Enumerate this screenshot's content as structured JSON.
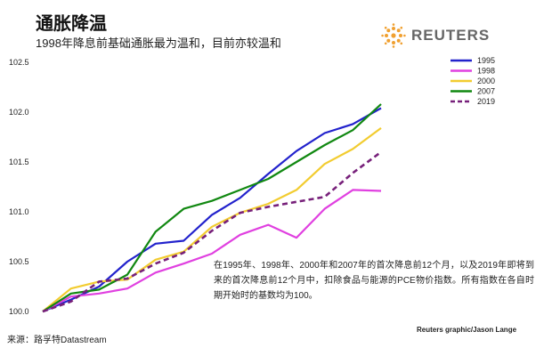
{
  "header": {
    "title": "通胀降温",
    "subtitle": "1998年降息前基础通胀最为温和，目前亦较温和"
  },
  "logo": {
    "text": "REUTERS"
  },
  "source": "来源：路孚特Datastream",
  "credit": "Reuters graphic/Jason Lange",
  "note": "在1995年、1998年、2000年和2007年的首次降息前12个月，以及2019年即将到来的首次降息前12个月中，扣除食品与能源的PCE物价指数。所有指数在各自时期开始时的基数均为100。",
  "chart_data": {
    "type": "line",
    "x": [
      0,
      1,
      2,
      3,
      4,
      5,
      6,
      7,
      8,
      9,
      10,
      11,
      12
    ],
    "ylim": [
      100.0,
      102.5
    ],
    "yticks": [
      "100.0",
      "100.5",
      "101.0",
      "101.5",
      "102.0",
      "102.5"
    ],
    "legend_position": "top-right",
    "series": [
      {
        "name": "1995",
        "color": "#2222cc",
        "style": "solid",
        "values": [
          100.0,
          100.12,
          100.25,
          100.5,
          100.68,
          100.71,
          100.97,
          101.14,
          101.38,
          101.61,
          101.79,
          101.88,
          102.04
        ]
      },
      {
        "name": "1998",
        "color": "#e040e0",
        "style": "solid",
        "values": [
          100.0,
          100.15,
          100.18,
          100.23,
          100.39,
          100.48,
          100.58,
          100.77,
          100.87,
          100.74,
          101.03,
          101.22,
          101.21
        ]
      },
      {
        "name": "2000",
        "color": "#f2cc30",
        "style": "solid",
        "values": [
          100.0,
          100.23,
          100.3,
          100.32,
          100.52,
          100.6,
          100.85,
          100.99,
          101.08,
          101.22,
          101.48,
          101.63,
          101.84
        ]
      },
      {
        "name": "2007",
        "color": "#118811",
        "style": "solid",
        "values": [
          100.0,
          100.18,
          100.22,
          100.37,
          100.8,
          101.03,
          101.11,
          101.22,
          101.33,
          101.5,
          101.67,
          101.82,
          102.08
        ]
      },
      {
        "name": "2019",
        "color": "#77207a",
        "style": "dashed",
        "values": [
          100.0,
          100.1,
          100.3,
          100.33,
          100.48,
          100.59,
          100.81,
          100.99,
          101.05,
          101.1,
          101.15,
          101.39,
          101.6
        ]
      }
    ]
  }
}
